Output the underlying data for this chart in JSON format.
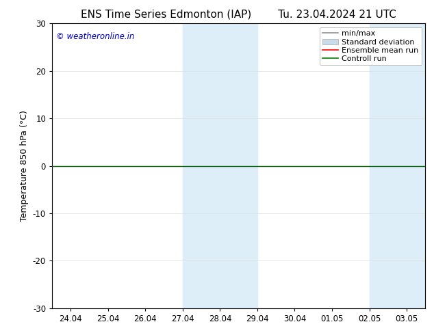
{
  "title_left": "ENS Time Series Edmonton (IAP)",
  "title_right": "Tu. 23.04.2024 21 UTC",
  "ylabel": "Temperature 850 hPa (°C)",
  "ylim": [
    -30,
    30
  ],
  "yticks": [
    -30,
    -20,
    -10,
    0,
    10,
    20,
    30
  ],
  "xtick_labels": [
    "24.04",
    "25.04",
    "26.04",
    "27.04",
    "28.04",
    "29.04",
    "30.04",
    "01.05",
    "02.05",
    "03.05"
  ],
  "xtick_days": [
    0,
    1,
    2,
    3,
    4,
    5,
    6,
    7,
    8,
    9
  ],
  "shaded_bands": [
    {
      "xstart": 3.0,
      "xend": 3.5
    },
    {
      "xstart": 3.5,
      "xend": 5.0
    },
    {
      "xstart": 8.0,
      "xend": 8.5
    },
    {
      "xstart": 8.5,
      "xend": 9.5
    }
  ],
  "shade_color": "#ddeef8",
  "background_color": "#ffffff",
  "zero_line_color": "#006400",
  "watermark": "© weatheronline.in",
  "watermark_color": "#0000cc",
  "legend_entries": [
    {
      "label": "min/max",
      "color": "#909090",
      "lw": 1.2
    },
    {
      "label": "Standard deviation",
      "color": "#c8dcea",
      "lw": 8
    },
    {
      "label": "Ensemble mean run",
      "color": "#ff0000",
      "lw": 1.2
    },
    {
      "label": "Controll run",
      "color": "#008000",
      "lw": 1.2
    }
  ],
  "grid_color": "#dddddd",
  "title_fontsize": 11,
  "axis_fontsize": 9,
  "tick_fontsize": 8.5,
  "legend_fontsize": 8
}
